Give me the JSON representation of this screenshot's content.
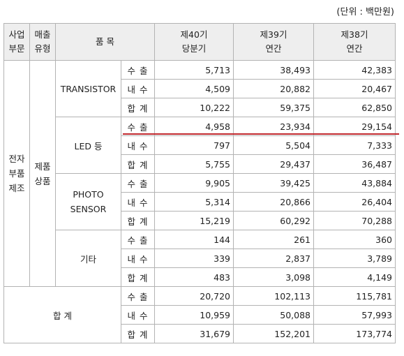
{
  "unit_note": "(단위 : 백만원)",
  "header": {
    "segment_l1": "사업",
    "segment_l2": "부문",
    "type_l1": "매출",
    "type_l2": "유형",
    "item": "품 목",
    "p40_l1": "제40기",
    "p40_l2": "당분기",
    "p39_l1": "제39기",
    "p39_l2": "연간",
    "p38_l1": "제38기",
    "p38_l2": "연간"
  },
  "segment": {
    "l1": "전자",
    "l2": "부품",
    "l3": "제조"
  },
  "sales_type": {
    "l1": "제품",
    "l2": "상품"
  },
  "groups": [
    {
      "name": "TRANSISTOR",
      "rows": [
        {
          "kind": "수 출",
          "p40": "5,713",
          "p39": "38,493",
          "p38": "42,383"
        },
        {
          "kind": "내 수",
          "p40": "4,509",
          "p39": "20,882",
          "p38": "20,467"
        },
        {
          "kind": "합 계",
          "p40": "10,222",
          "p39": "59,375",
          "p38": "62,850"
        }
      ]
    },
    {
      "name": "LED 등",
      "rows": [
        {
          "kind": "수 출",
          "p40": "4,958",
          "p39": "23,934",
          "p38": "29,154"
        },
        {
          "kind": "내 수",
          "p40": "797",
          "p39": "5,504",
          "p38": "7,333"
        },
        {
          "kind": "합 계",
          "p40": "5,755",
          "p39": "29,437",
          "p38": "36,487"
        }
      ]
    },
    {
      "name_l1": "PHOTO",
      "name_l2": "SENSOR",
      "rows": [
        {
          "kind": "수 출",
          "p40": "9,905",
          "p39": "39,425",
          "p38": "43,884"
        },
        {
          "kind": "내 수",
          "p40": "5,314",
          "p39": "20,866",
          "p38": "26,404"
        },
        {
          "kind": "합 계",
          "p40": "15,219",
          "p39": "60,292",
          "p38": "70,288"
        }
      ]
    },
    {
      "name": "기타",
      "rows": [
        {
          "kind": "수 출",
          "p40": "144",
          "p39": "261",
          "p38": "360"
        },
        {
          "kind": "내 수",
          "p40": "339",
          "p39": "2,837",
          "p38": "3,789"
        },
        {
          "kind": "합 계",
          "p40": "483",
          "p39": "3,098",
          "p38": "4,149"
        }
      ]
    }
  ],
  "total": {
    "label": "합 계",
    "rows": [
      {
        "kind": "수 출",
        "p40": "20,720",
        "p39": "102,113",
        "p38": "115,781"
      },
      {
        "kind": "내 수",
        "p40": "10,959",
        "p39": "50,088",
        "p38": "57,993"
      },
      {
        "kind": "합 계",
        "p40": "31,679",
        "p39": "152,201",
        "p38": "173,774"
      }
    ]
  },
  "colors": {
    "header_bg": "#eeeeee",
    "border": "#b3b3b3",
    "highlight_line": "#c0282d"
  }
}
